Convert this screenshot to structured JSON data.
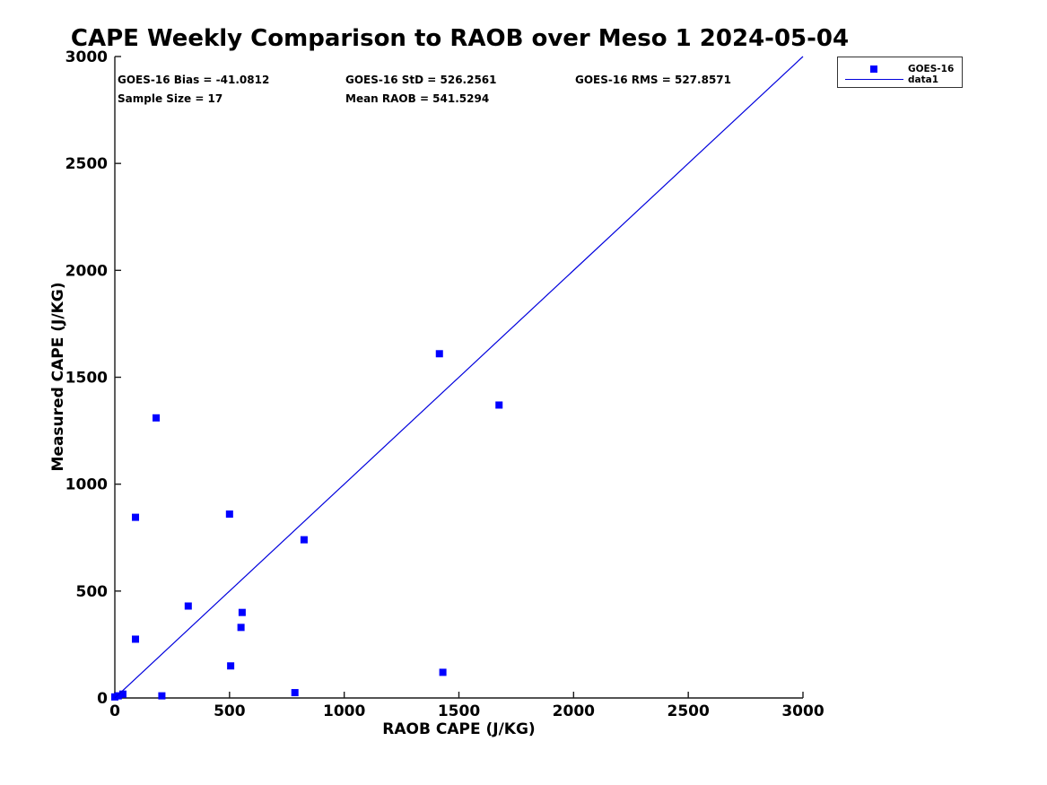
{
  "title": "CAPE Weekly Comparison to RAOB over Meso 1 2024-05-04",
  "stats": {
    "bias": "GOES-16 Bias = -41.0812",
    "std": "GOES-16 StD = 526.2561",
    "rms": "GOES-16 RMS = 527.8571",
    "sample_size": "Sample Size = 17",
    "mean_raob": "Mean RAOB = 541.5294"
  },
  "legend": {
    "entries": [
      {
        "label": "GOES-16",
        "marker": "square",
        "color": "#0000ff"
      },
      {
        "label": "data1",
        "marker": "line",
        "color": "#0000dd"
      }
    ]
  },
  "chart_data": {
    "type": "scatter",
    "title": "CAPE Weekly Comparison to RAOB over Meso 1 2024-05-04",
    "xlabel": "RAOB CAPE (J/KG)",
    "ylabel": "Measured CAPE (J/KG)",
    "xlim": [
      0,
      3000
    ],
    "ylim": [
      0,
      3000
    ],
    "xticks": [
      0,
      500,
      1000,
      1500,
      2000,
      2500,
      3000
    ],
    "yticks": [
      0,
      500,
      1000,
      1500,
      2000,
      2500,
      3000
    ],
    "grid": false,
    "legend_position": "outside-top-right",
    "axis_color": "#1a1a1a",
    "series": [
      {
        "name": "GOES-16",
        "type": "scatter",
        "marker": "square",
        "color": "#0000ff",
        "points": [
          [
            0,
            5
          ],
          [
            15,
            10
          ],
          [
            35,
            18
          ],
          [
            90,
            275
          ],
          [
            90,
            845
          ],
          [
            180,
            1310
          ],
          [
            205,
            10
          ],
          [
            320,
            430
          ],
          [
            500,
            860
          ],
          [
            505,
            150
          ],
          [
            550,
            330
          ],
          [
            555,
            400
          ],
          [
            785,
            25
          ],
          [
            825,
            740
          ],
          [
            1415,
            1610
          ],
          [
            1430,
            120
          ],
          [
            1675,
            1370
          ]
        ]
      },
      {
        "name": "data1",
        "type": "line",
        "color": "#0000dd",
        "points": [
          [
            0,
            0
          ],
          [
            3000,
            3000
          ]
        ]
      }
    ],
    "annotations": [
      "GOES-16 Bias = -41.0812",
      "GOES-16 StD = 526.2561",
      "GOES-16 RMS = 527.8571",
      "Sample Size = 17",
      "Mean RAOB = 541.5294"
    ]
  }
}
